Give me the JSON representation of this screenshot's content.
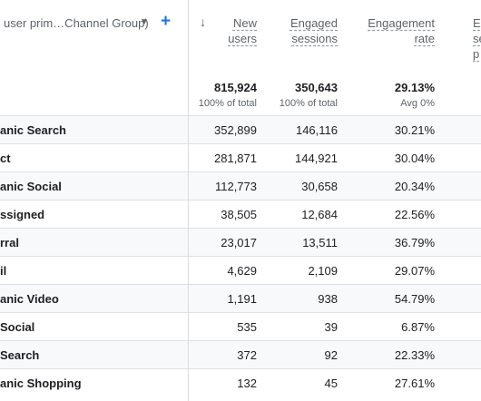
{
  "header": {
    "dimension_label": "user prim…Channel Group)",
    "sort_icon": "arrow-down-icon",
    "add_icon": "plus-icon",
    "columns": [
      {
        "line1": "New",
        "line2": "users"
      },
      {
        "line1": "Engaged",
        "line2": "sessions"
      },
      {
        "line1": "Engagement",
        "line2": "rate"
      },
      {
        "line1": "E",
        "line2": "se",
        "line3": "p"
      }
    ]
  },
  "totals": {
    "new_users": "815,924",
    "new_users_sub": "100% of total",
    "engaged_sessions": "350,643",
    "engaged_sessions_sub": "100% of total",
    "engagement_rate": "29.13%",
    "engagement_rate_sub": "Avg 0%"
  },
  "rows": [
    {
      "name": "anic Search",
      "new_users": "352,899",
      "engaged_sessions": "146,116",
      "engagement_rate": "30.21%"
    },
    {
      "name": "ct",
      "new_users": "281,871",
      "engaged_sessions": "144,921",
      "engagement_rate": "30.04%"
    },
    {
      "name": "anic Social",
      "new_users": "112,773",
      "engaged_sessions": "30,658",
      "engagement_rate": "20.34%"
    },
    {
      "name": "ssigned",
      "new_users": "38,505",
      "engaged_sessions": "12,684",
      "engagement_rate": "22.56%"
    },
    {
      "name": "rral",
      "new_users": "23,017",
      "engaged_sessions": "13,511",
      "engagement_rate": "36.79%"
    },
    {
      "name": "il",
      "new_users": "4,629",
      "engaged_sessions": "2,109",
      "engagement_rate": "29.07%"
    },
    {
      "name": "anic Video",
      "new_users": "1,191",
      "engaged_sessions": "938",
      "engagement_rate": "54.79%"
    },
    {
      "name": "Social",
      "new_users": "535",
      "engaged_sessions": "39",
      "engagement_rate": "6.87%"
    },
    {
      "name": "Search",
      "new_users": "372",
      "engaged_sessions": "92",
      "engagement_rate": "22.33%"
    },
    {
      "name": "anic Shopping",
      "new_users": "132",
      "engaged_sessions": "45",
      "engagement_rate": "27.61%"
    }
  ]
}
